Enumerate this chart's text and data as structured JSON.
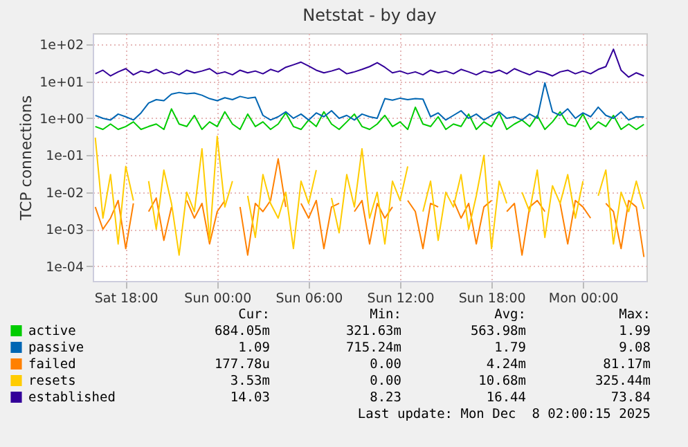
{
  "chart_data": {
    "type": "line",
    "title": "Netstat - by day",
    "ylabel": "TCP connections",
    "x": [
      "2025-12-06T16:00",
      "2025-12-06T16:30",
      "2025-12-06T17:00",
      "2025-12-06T17:30",
      "2025-12-06T18:00",
      "2025-12-06T18:30",
      "2025-12-06T19:00",
      "2025-12-06T19:30",
      "2025-12-06T20:00",
      "2025-12-06T20:30",
      "2025-12-06T21:00",
      "2025-12-06T21:30",
      "2025-12-06T22:00",
      "2025-12-06T22:30",
      "2025-12-06T23:00",
      "2025-12-06T23:30",
      "2025-12-07T00:00",
      "2025-12-07T00:30",
      "2025-12-07T01:00",
      "2025-12-07T01:30",
      "2025-12-07T02:00",
      "2025-12-07T02:30",
      "2025-12-07T03:00",
      "2025-12-07T03:30",
      "2025-12-07T04:00",
      "2025-12-07T04:30",
      "2025-12-07T05:00",
      "2025-12-07T05:30",
      "2025-12-07T06:00",
      "2025-12-07T06:30",
      "2025-12-07T07:00",
      "2025-12-07T07:30",
      "2025-12-07T08:00",
      "2025-12-07T08:30",
      "2025-12-07T09:00",
      "2025-12-07T09:30",
      "2025-12-07T10:00",
      "2025-12-07T10:30",
      "2025-12-07T11:00",
      "2025-12-07T11:30",
      "2025-12-07T12:00",
      "2025-12-07T12:30",
      "2025-12-07T13:00",
      "2025-12-07T13:30",
      "2025-12-07T14:00",
      "2025-12-07T14:30",
      "2025-12-07T15:00",
      "2025-12-07T15:30",
      "2025-12-07T16:00",
      "2025-12-07T16:30",
      "2025-12-07T17:00",
      "2025-12-07T17:30",
      "2025-12-07T18:00",
      "2025-12-07T18:30",
      "2025-12-07T19:00",
      "2025-12-07T19:30",
      "2025-12-07T20:00",
      "2025-12-07T20:30",
      "2025-12-07T21:00",
      "2025-12-07T21:30",
      "2025-12-07T22:00",
      "2025-12-07T22:30",
      "2025-12-07T23:00",
      "2025-12-07T23:30",
      "2025-12-08T00:00",
      "2025-12-08T00:30",
      "2025-12-08T01:00",
      "2025-12-08T01:30",
      "2025-12-08T02:00",
      "2025-12-08T02:30",
      "2025-12-08T03:00",
      "2025-12-08T03:30",
      "2025-12-08T04:00"
    ],
    "series": [
      {
        "name": "active",
        "color": "#00cc00",
        "values": [
          0.6,
          0.5,
          0.7,
          0.5,
          0.6,
          0.8,
          0.5,
          0.6,
          0.7,
          0.5,
          1.8,
          0.7,
          0.6,
          1.2,
          0.5,
          0.8,
          0.6,
          1.5,
          0.7,
          0.5,
          1.3,
          0.6,
          0.8,
          0.5,
          0.7,
          1.4,
          0.6,
          0.5,
          0.9,
          0.6,
          1.5,
          0.7,
          0.5,
          0.8,
          1.3,
          0.6,
          0.5,
          0.7,
          1.2,
          0.6,
          0.8,
          0.5,
          1.99,
          0.7,
          0.6,
          1.1,
          0.5,
          0.7,
          0.6,
          1.3,
          0.5,
          0.8,
          0.6,
          1.4,
          0.5,
          0.7,
          0.9,
          0.6,
          1.2,
          0.5,
          0.8,
          1.5,
          0.7,
          0.6,
          1.3,
          0.5,
          0.8,
          0.6,
          1.2,
          0.5,
          0.7,
          0.5,
          0.684
        ]
      },
      {
        "name": "passive",
        "color": "#0066b3",
        "values": [
          1.2,
          1.0,
          0.9,
          1.3,
          1.1,
          0.9,
          1.4,
          2.6,
          3.2,
          3.0,
          4.5,
          5.0,
          4.6,
          4.8,
          4.2,
          3.4,
          3.0,
          3.6,
          3.2,
          3.9,
          3.5,
          3.7,
          1.2,
          0.9,
          1.1,
          1.5,
          1.0,
          1.3,
          0.9,
          1.4,
          1.1,
          1.6,
          1.0,
          1.2,
          0.9,
          1.3,
          1.1,
          1.0,
          3.4,
          3.1,
          3.5,
          3.2,
          3.4,
          3.3,
          1.1,
          1.4,
          0.9,
          1.2,
          1.6,
          1.0,
          1.3,
          0.9,
          1.2,
          1.5,
          1.0,
          1.1,
          0.9,
          1.3,
          1.0,
          9.08,
          1.5,
          1.2,
          1.8,
          1.0,
          1.4,
          1.1,
          2.0,
          1.2,
          1.0,
          1.5,
          0.9,
          1.1,
          1.09
        ]
      },
      {
        "name": "failed",
        "color": "#ff8000",
        "values": [
          0.004,
          0.001,
          0.002,
          0.006,
          0.0003,
          0.005,
          null,
          0.003,
          0.007,
          0.0005,
          0.004,
          null,
          0.006,
          0.002,
          0.005,
          0.0004,
          0.003,
          0.006,
          null,
          0.004,
          0.0002,
          0.005,
          0.003,
          0.006,
          0.08,
          0.004,
          null,
          0.005,
          0.002,
          0.006,
          0.0003,
          0.004,
          0.005,
          null,
          0.003,
          0.006,
          0.0004,
          0.005,
          0.002,
          0.004,
          null,
          0.006,
          0.003,
          0.0003,
          0.005,
          0.004,
          null,
          0.006,
          0.002,
          0.005,
          0.0004,
          0.004,
          0.006,
          null,
          0.003,
          0.005,
          0.0002,
          0.004,
          0.006,
          0.003,
          null,
          0.005,
          0.0004,
          0.006,
          0.004,
          0.002,
          null,
          0.005,
          0.003,
          0.0003,
          0.006,
          0.004,
          0.000178
        ]
      },
      {
        "name": "resets",
        "color": "#ffcc00",
        "values": [
          0.3,
          0.002,
          0.03,
          0.0004,
          0.05,
          0.006,
          null,
          0.02,
          0.001,
          0.04,
          0.005,
          0.0002,
          0.01,
          0.003,
          0.15,
          0.0005,
          0.325,
          0.004,
          0.02,
          null,
          0.008,
          0.0006,
          0.03,
          0.005,
          0.002,
          0.01,
          0.0003,
          0.02,
          0.005,
          0.04,
          null,
          0.007,
          0.0008,
          0.03,
          0.004,
          0.15,
          0.002,
          0.01,
          0.0004,
          0.02,
          0.006,
          0.05,
          null,
          0.003,
          0.02,
          0.0005,
          0.01,
          0.004,
          0.03,
          0.001,
          0.008,
          0.1,
          0.0003,
          0.02,
          0.005,
          null,
          0.01,
          0.003,
          0.04,
          0.0006,
          0.015,
          0.005,
          0.03,
          0.002,
          0.02,
          null,
          0.008,
          0.04,
          0.0004,
          0.01,
          0.003,
          0.02,
          0.00353
        ]
      },
      {
        "name": "established",
        "color": "#330099",
        "values": [
          16,
          20,
          14,
          18,
          22,
          15,
          19,
          17,
          21,
          16,
          18,
          15,
          20,
          17,
          19,
          22,
          16,
          18,
          15,
          20,
          17,
          19,
          16,
          21,
          18,
          24,
          28,
          33,
          26,
          20,
          17,
          19,
          22,
          16,
          18,
          21,
          25,
          32,
          24,
          17,
          19,
          16,
          18,
          15,
          20,
          17,
          19,
          16,
          21,
          18,
          15,
          19,
          17,
          20,
          16,
          22,
          18,
          15,
          19,
          17,
          14,
          18,
          20,
          16,
          19,
          16,
          21,
          25,
          73.84,
          20,
          13,
          17,
          14
        ]
      }
    ],
    "xlim": [
      "2025-12-06T15:50",
      "2025-12-08T04:10"
    ],
    "xticks": [
      {
        "value": "2025-12-06T18:00",
        "label": "Sat 18:00"
      },
      {
        "value": "2025-12-07T00:00",
        "label": "Sun 00:00"
      },
      {
        "value": "2025-12-07T06:00",
        "label": "Sun 06:00"
      },
      {
        "value": "2025-12-07T12:00",
        "label": "Sun 12:00"
      },
      {
        "value": "2025-12-07T18:00",
        "label": "Sun 18:00"
      },
      {
        "value": "2025-12-08T00:00",
        "label": "Mon 00:00"
      }
    ],
    "ylim": [
      4e-05,
      200
    ],
    "yticks": [
      {
        "value": 0.0001,
        "label": "1e-04"
      },
      {
        "value": 0.001,
        "label": "1e-03"
      },
      {
        "value": 0.01,
        "label": "1e-02"
      },
      {
        "value": 0.1,
        "label": "1e-01"
      },
      {
        "value": 1,
        "label": "1e+00"
      },
      {
        "value": 10,
        "label": "1e+01"
      },
      {
        "value": 100,
        "label": "1e+02"
      }
    ],
    "log": "y",
    "grid": true,
    "legend": "bottom",
    "annotations": [
      "Cur:",
      "Min:",
      "Avg:",
      "Max:",
      "684.05m",
      "321.63m",
      "563.98m",
      "1.99",
      "1.09",
      "715.24m",
      "1.79",
      "9.08",
      "177.78u",
      "0.00",
      "4.24m",
      "81.17m",
      "3.53m",
      "0.00",
      "10.68m",
      "325.44m",
      "14.03",
      "8.23",
      "16.44",
      "73.84",
      "Last update: Mon Dec  8 02:00:15 2025"
    ]
  }
}
